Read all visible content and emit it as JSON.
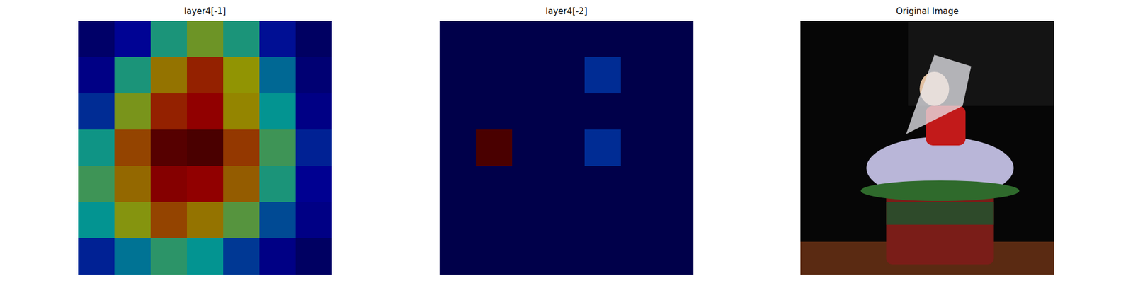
{
  "chart_data": [
    {
      "type": "heatmap",
      "title": "layer4[-1]",
      "tick_labels": false,
      "color_range": [
        0,
        1
      ],
      "cells": [
        [
          0.05,
          0.13,
          0.42,
          0.56,
          0.42,
          0.15,
          0.04
        ],
        [
          0.1,
          0.42,
          0.68,
          0.82,
          0.62,
          0.3,
          0.07
        ],
        [
          0.2,
          0.58,
          0.82,
          0.88,
          0.65,
          0.38,
          0.1
        ],
        [
          0.4,
          0.76,
          0.98,
          1.0,
          0.78,
          0.48,
          0.18
        ],
        [
          0.48,
          0.7,
          0.9,
          0.88,
          0.72,
          0.42,
          0.12
        ],
        [
          0.38,
          0.6,
          0.76,
          0.68,
          0.52,
          0.25,
          0.1
        ],
        [
          0.18,
          0.32,
          0.45,
          0.38,
          0.22,
          0.1,
          0.04
        ]
      ]
    },
    {
      "type": "heatmap",
      "title": "layer4[-2]",
      "tick_labels": false,
      "color_range": [
        0,
        1
      ],
      "cells": [
        [
          0,
          0,
          0,
          0,
          0,
          0,
          0
        ],
        [
          0,
          0,
          0,
          0,
          0.2,
          0,
          0
        ],
        [
          0,
          0,
          0,
          0,
          0,
          0,
          0
        ],
        [
          0,
          1,
          0,
          0,
          0.2,
          0,
          0
        ],
        [
          0,
          0,
          0,
          0,
          0,
          0,
          0
        ],
        [
          0,
          0,
          0,
          0,
          0,
          0,
          0
        ],
        [
          0,
          0,
          0,
          0,
          0,
          0,
          0
        ]
      ]
    },
    {
      "type": "image",
      "title": "Original Image"
    }
  ]
}
